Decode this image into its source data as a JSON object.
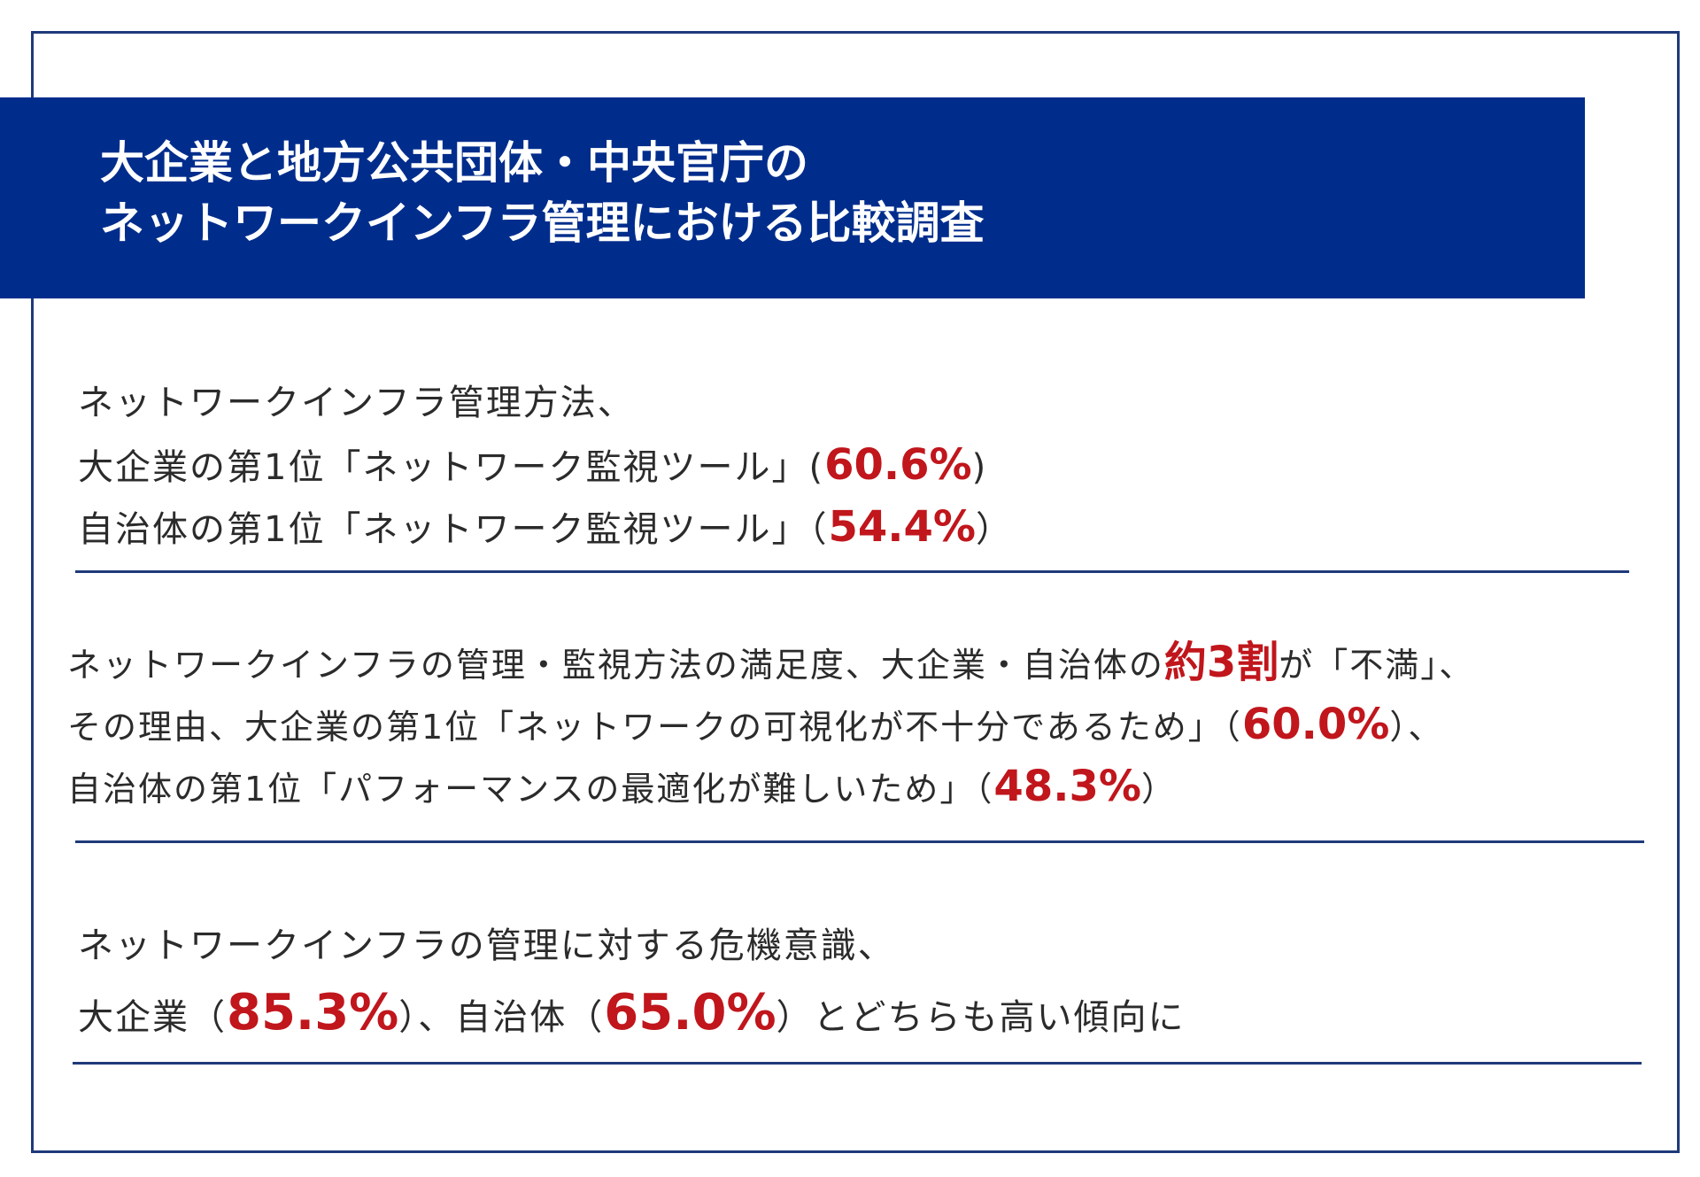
{
  "title": {
    "line1": "大企業と地方公共団体・中央官庁の",
    "line2": "ネットワークインフラ管理における比較調査"
  },
  "section1": {
    "l1": "ネットワークインフラ管理方法、",
    "l2a": "大企業の第1位「ネットワーク監視ツール」(",
    "l2v": "60.6%",
    "l2b": ")",
    "l3a": "自治体の第1位「ネットワーク監視ツール」（",
    "l3v": "54.4%",
    "l3b": "）"
  },
  "section2": {
    "l1a": "ネットワークインフラの管理・監視方法の満足度、大企業・自治体の",
    "l1v": "約3割",
    "l1b": "が「不満」、",
    "l2a": "その理由、大企業の第1位「ネットワークの可視化が不十分であるため」（",
    "l2v": "60.0%",
    "l2b": "）、",
    "l3a": "自治体の第1位「パフォーマンスの最適化が難しいため」（",
    "l3v": "48.3%",
    "l3b": "）"
  },
  "section3": {
    "l1": "ネットワークインフラの管理に対する危機意識、",
    "l2a": "大企業（",
    "l2v": "85.3%",
    "l2b": "）、自治体（",
    "l2v2": "65.0%",
    "l2c": "）とどちらも高い傾向に"
  },
  "colors": {
    "banner": "#002d8c",
    "accent": "#c0161c",
    "rule": "#1f3a7a"
  }
}
